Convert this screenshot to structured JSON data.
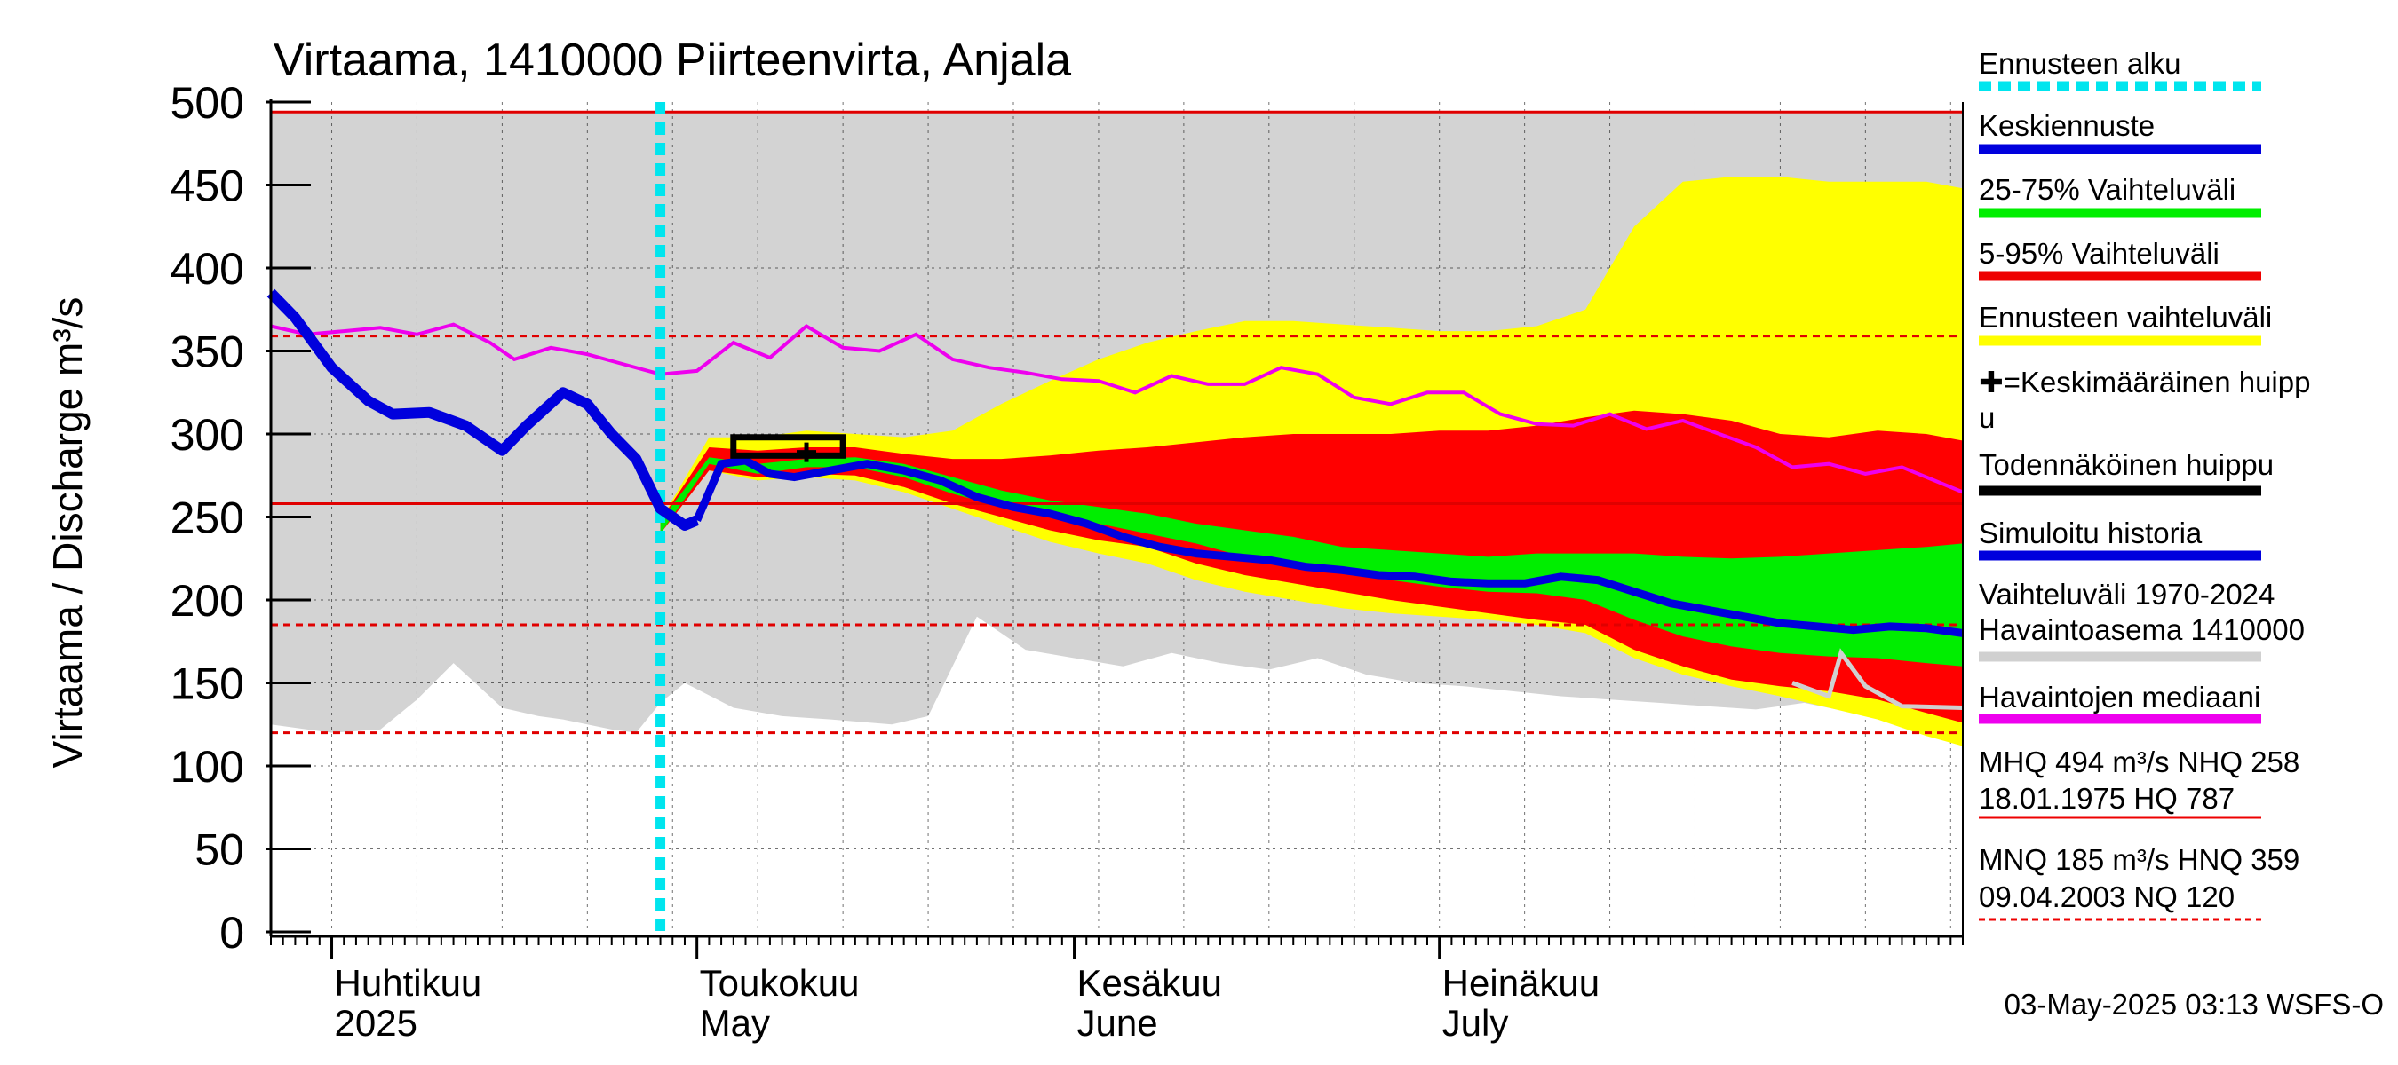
{
  "chart_data": {
    "type": "area",
    "title": "Virtaama, 1410000 Piirteenvirta, Anjala",
    "ylabel": "Virtaama / Discharge   m³/s",
    "ylim": [
      0,
      500
    ],
    "yticks": [
      "0",
      "50",
      "100",
      "150",
      "200",
      "250",
      "300",
      "350",
      "400",
      "450",
      "500"
    ],
    "xlim": [
      "2025-03-27",
      "2025-08-13"
    ],
    "x_month_labels": [
      {
        "date": "2025-04-01",
        "line1": "Huhtikuu",
        "line2": "2025"
      },
      {
        "date": "2025-05-01",
        "line1": "Toukokuu",
        "line2": "May"
      },
      {
        "date": "2025-06-01",
        "line1": "Kesäkuu",
        "line2": "June"
      },
      {
        "date": "2025-07-01",
        "line1": "Heinäkuu",
        "line2": "July"
      }
    ],
    "forecast_start": "2025-04-28",
    "reference_lines": [
      {
        "name": "MHQ",
        "value": 494,
        "style": "solid",
        "color": "#e00000"
      },
      {
        "name": "NHQ",
        "value": 258,
        "style": "solid",
        "color": "#e00000"
      },
      {
        "name": "MNQ",
        "value": 185,
        "style": "dashed",
        "color": "#e00000"
      },
      {
        "name": "HNQ",
        "value": 359,
        "style": "dashed",
        "color": "#e00000"
      },
      {
        "name": "NQ",
        "value": 120,
        "style": "dashed",
        "color": "#e00000"
      }
    ],
    "band_dates": [
      "2025-04-28",
      "2025-05-02",
      "2025-05-06",
      "2025-05-10",
      "2025-05-14",
      "2025-05-18",
      "2025-05-22",
      "2025-05-26",
      "2025-05-30",
      "2025-06-03",
      "2025-06-07",
      "2025-06-11",
      "2025-06-15",
      "2025-06-19",
      "2025-06-23",
      "2025-06-27",
      "2025-07-01",
      "2025-07-05",
      "2025-07-09",
      "2025-07-13",
      "2025-07-17",
      "2025-07-21",
      "2025-07-25",
      "2025-07-29",
      "2025-08-02",
      "2025-08-06",
      "2025-08-10",
      "2025-08-13"
    ],
    "ens_min": [
      240,
      278,
      272,
      274,
      272,
      265,
      255,
      245,
      235,
      228,
      222,
      212,
      205,
      200,
      195,
      192,
      190,
      188,
      185,
      180,
      165,
      155,
      148,
      142,
      135,
      128,
      118,
      112
    ],
    "ens_max": [
      248,
      298,
      298,
      302,
      300,
      298,
      302,
      318,
      332,
      345,
      355,
      362,
      368,
      368,
      366,
      364,
      362,
      362,
      365,
      375,
      425,
      452,
      455,
      455,
      452,
      452,
      452,
      448
    ],
    "p5": [
      240,
      278,
      274,
      276,
      275,
      268,
      258,
      250,
      242,
      236,
      232,
      222,
      215,
      210,
      205,
      200,
      196,
      192,
      188,
      185,
      170,
      160,
      152,
      148,
      145,
      140,
      132,
      126
    ],
    "p95": [
      248,
      292,
      290,
      292,
      292,
      288,
      285,
      285,
      287,
      290,
      292,
      295,
      298,
      300,
      300,
      300,
      302,
      302,
      305,
      310,
      314,
      312,
      308,
      300,
      298,
      302,
      300,
      296
    ],
    "p25": [
      240,
      282,
      276,
      280,
      280,
      274,
      264,
      256,
      250,
      246,
      240,
      234,
      226,
      222,
      216,
      212,
      208,
      205,
      204,
      200,
      188,
      178,
      172,
      168,
      166,
      165,
      162,
      160
    ],
    "p75": [
      248,
      286,
      282,
      285,
      286,
      282,
      274,
      266,
      260,
      256,
      252,
      246,
      242,
      238,
      232,
      230,
      228,
      226,
      228,
      228,
      228,
      226,
      225,
      226,
      228,
      230,
      232,
      234
    ],
    "hist_dates": [
      "2025-03-27",
      "2025-04-01",
      "2025-04-05",
      "2025-04-08",
      "2025-04-11",
      "2025-04-15",
      "2025-04-18",
      "2025-04-20",
      "2025-04-22",
      "2025-04-24",
      "2025-04-26",
      "2025-04-28",
      "2025-04-30",
      "2025-05-04",
      "2025-05-08",
      "2025-05-12",
      "2025-05-17",
      "2025-05-20",
      "2025-05-24",
      "2025-05-28",
      "2025-06-01",
      "2025-06-05",
      "2025-06-09",
      "2025-06-13",
      "2025-06-17",
      "2025-06-21",
      "2025-06-25",
      "2025-06-29",
      "2025-07-03",
      "2025-07-07",
      "2025-07-11",
      "2025-07-15",
      "2025-07-19",
      "2025-07-23",
      "2025-07-27",
      "2025-07-31",
      "2025-08-04",
      "2025-08-08",
      "2025-08-13"
    ],
    "hist_min": [
      125,
      120,
      122,
      140,
      162,
      135,
      130,
      128,
      125,
      122,
      120,
      138,
      150,
      135,
      130,
      128,
      125,
      130,
      190,
      170,
      165,
      160,
      168,
      162,
      158,
      165,
      155,
      150,
      148,
      145,
      142,
      140,
      138,
      136,
      134,
      138,
      132,
      128,
      125
    ],
    "hist_max": [
      494,
      494,
      494,
      494,
      494,
      494,
      494,
      494,
      494,
      494,
      494,
      494,
      494,
      494,
      494,
      494,
      494,
      494,
      494,
      494,
      494,
      494,
      494,
      494,
      494,
      494,
      494,
      494,
      494,
      494,
      494,
      494,
      494,
      494,
      494,
      494,
      494,
      494,
      494
    ],
    "median_dates": [
      "2025-03-27",
      "2025-03-30",
      "2025-04-02",
      "2025-04-05",
      "2025-04-08",
      "2025-04-11",
      "2025-04-14",
      "2025-04-16",
      "2025-04-19",
      "2025-04-22",
      "2025-04-25",
      "2025-04-28",
      "2025-05-01",
      "2025-05-04",
      "2025-05-07",
      "2025-05-10",
      "2025-05-13",
      "2025-05-16",
      "2025-05-19",
      "2025-05-22",
      "2025-05-25",
      "2025-05-28",
      "2025-05-31",
      "2025-06-03",
      "2025-06-06",
      "2025-06-09",
      "2025-06-12",
      "2025-06-15",
      "2025-06-18",
      "2025-06-21",
      "2025-06-24",
      "2025-06-27",
      "2025-06-30",
      "2025-07-03",
      "2025-07-06",
      "2025-07-09",
      "2025-07-12",
      "2025-07-15",
      "2025-07-18",
      "2025-07-21",
      "2025-07-24",
      "2025-07-27",
      "2025-07-30",
      "2025-08-02",
      "2025-08-05",
      "2025-08-08",
      "2025-08-13"
    ],
    "median": [
      365,
      360,
      362,
      364,
      360,
      366,
      355,
      345,
      352,
      348,
      342,
      336,
      338,
      355,
      346,
      365,
      352,
      350,
      360,
      345,
      340,
      337,
      333,
      332,
      325,
      335,
      330,
      330,
      340,
      336,
      322,
      318,
      325,
      325,
      312,
      306,
      305,
      312,
      303,
      308,
      300,
      292,
      280,
      282,
      276,
      280,
      265
    ],
    "observed_tail_dates": [
      "2025-07-30",
      "2025-08-02",
      "2025-08-03",
      "2025-08-05",
      "2025-08-08",
      "2025-08-13"
    ],
    "observed_tail": [
      150,
      142,
      168,
      148,
      136,
      135
    ],
    "simulated_dates": [
      "2025-03-27",
      "2025-03-29",
      "2025-04-01",
      "2025-04-04",
      "2025-04-06",
      "2025-04-09",
      "2025-04-12",
      "2025-04-15",
      "2025-04-17",
      "2025-04-20",
      "2025-04-22",
      "2025-04-24",
      "2025-04-26",
      "2025-04-28",
      "2025-04-30",
      "2025-05-01"
    ],
    "simulated": [
      385,
      370,
      340,
      320,
      312,
      313,
      305,
      290,
      305,
      325,
      318,
      300,
      285,
      255,
      245,
      248
    ],
    "mean_forecast_dates": [
      "2025-05-01",
      "2025-05-03",
      "2025-05-05",
      "2025-05-07",
      "2025-05-09",
      "2025-05-12",
      "2025-05-15",
      "2025-05-18",
      "2025-05-21",
      "2025-05-24",
      "2025-05-27",
      "2025-05-30",
      "2025-06-02",
      "2025-06-05",
      "2025-06-08",
      "2025-06-11",
      "2025-06-14",
      "2025-06-17",
      "2025-06-20",
      "2025-06-23",
      "2025-06-26",
      "2025-06-29",
      "2025-07-02",
      "2025-07-05",
      "2025-07-08",
      "2025-07-11",
      "2025-07-14",
      "2025-07-17",
      "2025-07-20",
      "2025-07-23",
      "2025-07-26",
      "2025-07-29",
      "2025-08-01",
      "2025-08-04",
      "2025-08-07",
      "2025-08-10",
      "2025-08-13"
    ],
    "mean_forecast": [
      248,
      282,
      284,
      276,
      274,
      278,
      282,
      278,
      272,
      262,
      256,
      252,
      246,
      238,
      232,
      228,
      226,
      224,
      220,
      218,
      215,
      214,
      211,
      210,
      210,
      214,
      212,
      205,
      198,
      194,
      190,
      186,
      184,
      182,
      184,
      183,
      180
    ],
    "probable_peak": {
      "date_start": "2025-05-04",
      "date_end": "2025-05-13",
      "low": 287,
      "high": 298
    },
    "mean_peak": {
      "date": "2025-05-10",
      "value": 289
    },
    "legend": [
      {
        "label": "Ennusteen alku",
        "color": "#00e5ee",
        "style": "dotted"
      },
      {
        "label": "Keskiennuste",
        "color": "#0000dd",
        "style": "solid"
      },
      {
        "label": "25-75% Vaihteluväli",
        "color": "#00ee00",
        "style": "solid"
      },
      {
        "label": "5-95% Vaihteluväli",
        "color": "#ee0000",
        "style": "solid"
      },
      {
        "label": "Ennusteen vaihteluväli",
        "color": "#ffff00",
        "style": "solid"
      },
      {
        "label": "✚=Keskimääräinen huipp",
        "label2": "u",
        "color": "",
        "style": "none"
      },
      {
        "label": "Todennäköinen huippu",
        "color": "#000000",
        "style": "solid"
      },
      {
        "label": "Simuloitu historia",
        "color": "#0000dd",
        "style": "solid"
      },
      {
        "label": "Vaihteluväli 1970-2024",
        "label2": " Havaintoasema 1410000",
        "color": "#d0d0d0",
        "style": "solid"
      },
      {
        "label": "Havaintojen mediaani",
        "color": "#ee00ee",
        "style": "solid"
      },
      {
        "label": "MHQ  494 m³/s NHQ  258",
        "label2": "18.01.1975 HQ  787",
        "color": "#ee0000",
        "style": "thin"
      },
      {
        "label": "MNQ  185 m³/s HNQ  359",
        "label2": "09.04.2003 NQ  120",
        "color": "#ee0000",
        "style": "dashed"
      }
    ],
    "timestamp": "03-May-2025 03:13 WSFS-O"
  }
}
